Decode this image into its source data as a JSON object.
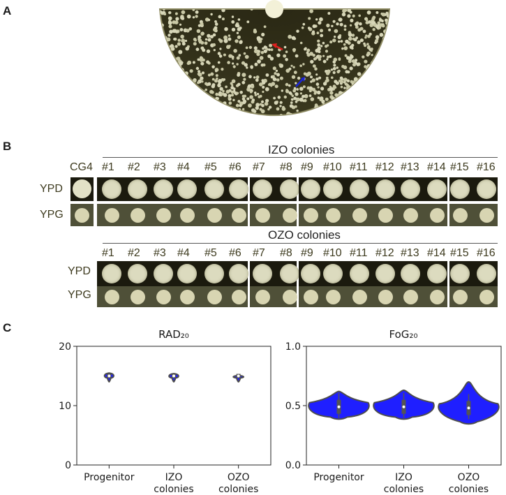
{
  "panels": {
    "a": "A",
    "b": "B",
    "c": "C"
  },
  "panel_b": {
    "izo_title": "IZO colonies",
    "ozo_title": "OZO colonies",
    "control_label": "CG4",
    "row_labels": [
      "YPD",
      "YPG"
    ],
    "colony_labels": [
      "#1",
      "#2",
      "#3",
      "#4",
      "#5",
      "#6",
      "#7",
      "#8",
      "#9",
      "#10",
      "#11",
      "#12",
      "#13",
      "#14",
      "#15",
      "#16"
    ]
  },
  "colors": {
    "violin_fill": "#1f1fff",
    "violin_edge": "#4d4d4d",
    "plate_agar": "#39361c",
    "colony": "#d7d6b8",
    "arrow_red": "#e0201f",
    "arrow_blue": "#1b25d6"
  },
  "chart_data": [
    {
      "type": "violin",
      "title": "RAD₂₀",
      "categories": [
        "Progenitor",
        "IZO\ncolonies",
        "OZO\ncolonies"
      ],
      "yticks": [
        "0",
        "10",
        "20"
      ],
      "ylim": [
        0,
        20
      ],
      "series": [
        {
          "median": 15,
          "min": 14,
          "max": 15.5
        },
        {
          "median": 15,
          "min": 14,
          "max": 15.4
        },
        {
          "median": 15,
          "min": 14,
          "max": 15.1
        }
      ]
    },
    {
      "type": "violin",
      "title": "FoG₂₀",
      "categories": [
        "Progenitor",
        "IZO\ncolonies",
        "OZO\ncolonies"
      ],
      "yticks": [
        "0.0",
        "0.5",
        "1.0"
      ],
      "ylim": [
        0,
        1
      ],
      "series": [
        {
          "median": 0.49,
          "min": 0.38,
          "max": 0.62
        },
        {
          "median": 0.49,
          "min": 0.38,
          "max": 0.63
        },
        {
          "median": 0.48,
          "min": 0.34,
          "max": 0.7
        }
      ]
    }
  ]
}
